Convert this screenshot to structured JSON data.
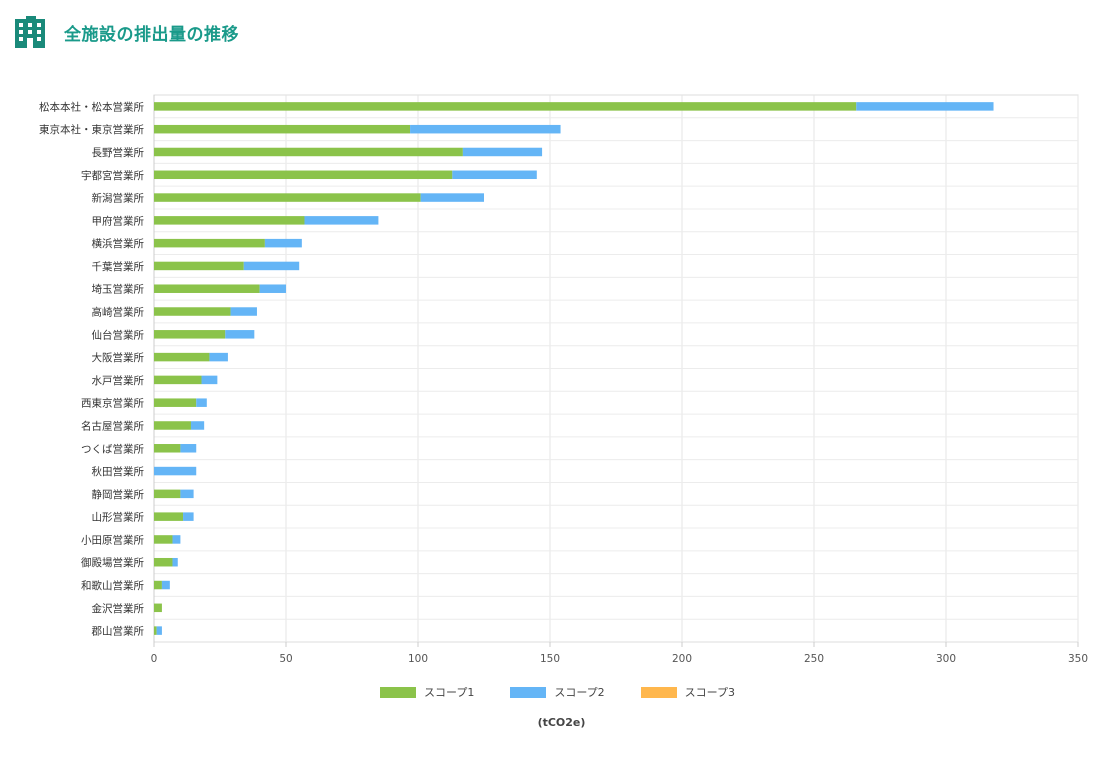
{
  "header": {
    "title": "全施設の排出量の推移",
    "icon": "building-icon",
    "title_color": "#1a9a8a",
    "icon_color": "#1a8a7a"
  },
  "chart_data": {
    "type": "bar",
    "orientation": "horizontal",
    "stacked": true,
    "categories": [
      "松本本社・松本営業所",
      "東京本社・東京営業所",
      "長野営業所",
      "宇都宮営業所",
      "新潟営業所",
      "甲府営業所",
      "横浜営業所",
      "千葉営業所",
      "埼玉営業所",
      "高崎営業所",
      "仙台営業所",
      "大阪営業所",
      "水戸営業所",
      "西東京営業所",
      "名古屋営業所",
      "つくば営業所",
      "秋田営業所",
      "静岡営業所",
      "山形営業所",
      "小田原営業所",
      "御殿場営業所",
      "和歌山営業所",
      "金沢営業所",
      "郡山営業所"
    ],
    "series": [
      {
        "name": "スコープ1",
        "color": "#8bc34a",
        "values": [
          266,
          97,
          117,
          113,
          101,
          57,
          42,
          34,
          40,
          29,
          27,
          21,
          18,
          16,
          14,
          10,
          0,
          10,
          11,
          7,
          7,
          3,
          3,
          1
        ]
      },
      {
        "name": "スコープ2",
        "color": "#64b5f6",
        "values": [
          52,
          57,
          30,
          32,
          24,
          28,
          14,
          21,
          10,
          10,
          11,
          7,
          6,
          4,
          5,
          6,
          16,
          5,
          4,
          3,
          2,
          3,
          0,
          2
        ]
      },
      {
        "name": "スコープ3",
        "color": "#ffb74d",
        "values": [
          0,
          0,
          0,
          0,
          0,
          0,
          0,
          0,
          0,
          0,
          0,
          0,
          0,
          0,
          0,
          0,
          0,
          0,
          0,
          0,
          0,
          0,
          0,
          0
        ]
      }
    ],
    "xlim": [
      0,
      350
    ],
    "xticks": [
      0,
      50,
      100,
      150,
      200,
      250,
      300,
      350
    ],
    "xlabel": "(tCO2e)",
    "grid": true,
    "legend_position": "bottom"
  }
}
